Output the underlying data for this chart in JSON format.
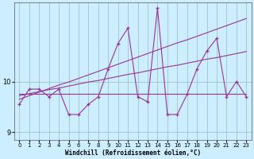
{
  "xlabel": "Windchill (Refroidissement éolien,°C)",
  "background_color": "#cceeff",
  "line_color": "#993399",
  "grid_color": "#99bbbb",
  "ylim": [
    8.85,
    11.55
  ],
  "xlim": [
    -0.5,
    23.5
  ],
  "yticks": [
    9,
    10
  ],
  "xticks": [
    0,
    1,
    2,
    3,
    4,
    5,
    6,
    7,
    8,
    9,
    10,
    11,
    12,
    13,
    14,
    15,
    16,
    17,
    18,
    19,
    20,
    21,
    22,
    23
  ],
  "x": [
    0,
    1,
    2,
    3,
    4,
    5,
    6,
    7,
    8,
    9,
    10,
    11,
    12,
    13,
    14,
    15,
    16,
    17,
    18,
    19,
    20,
    21,
    22,
    23
  ],
  "y_main": [
    9.55,
    9.85,
    9.85,
    9.7,
    9.85,
    9.35,
    9.35,
    9.55,
    9.7,
    10.25,
    10.75,
    11.05,
    9.7,
    9.6,
    11.45,
    9.35,
    9.35,
    9.75,
    10.25,
    10.6,
    10.85,
    9.7,
    10.0,
    9.7
  ],
  "y_trend_rising": [
    9.65,
    9.72,
    9.79,
    9.86,
    9.93,
    9.99,
    10.06,
    10.13,
    10.2,
    10.27,
    10.34,
    10.41,
    10.48,
    10.55,
    10.62,
    10.69,
    10.76,
    10.82,
    10.89,
    10.96,
    11.03,
    11.1,
    11.17,
    11.24
  ],
  "y_trend_mid": [
    9.72,
    9.76,
    9.8,
    9.84,
    9.87,
    9.91,
    9.95,
    9.99,
    10.02,
    10.06,
    10.1,
    10.14,
    10.17,
    10.21,
    10.25,
    10.29,
    10.32,
    10.36,
    10.4,
    10.44,
    10.47,
    10.51,
    10.55,
    10.59
  ],
  "y_flat": [
    9.75,
    9.75,
    9.75,
    9.75,
    9.75,
    9.75,
    9.75,
    9.75,
    9.75,
    9.75,
    9.75,
    9.75,
    9.75,
    9.75,
    9.75,
    9.75,
    9.75,
    9.75,
    9.75,
    9.75,
    9.75,
    9.75,
    9.75,
    9.75
  ]
}
